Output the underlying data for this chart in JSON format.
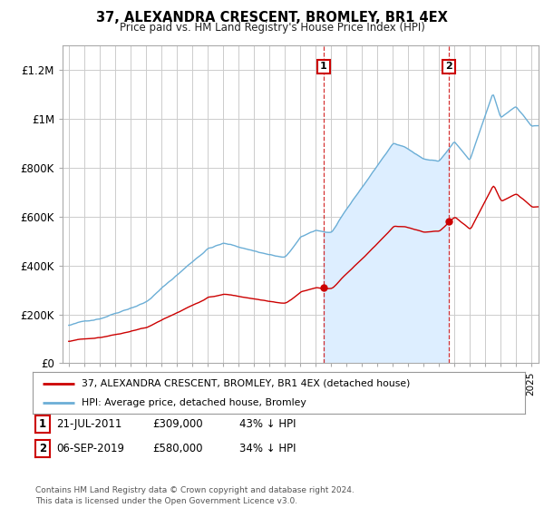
{
  "title": "37, ALEXANDRA CRESCENT, BROMLEY, BR1 4EX",
  "subtitle": "Price paid vs. HM Land Registry's House Price Index (HPI)",
  "ylabel_ticks": [
    "£0",
    "£200K",
    "£400K",
    "£600K",
    "£800K",
    "£1M",
    "£1.2M"
  ],
  "ylim": [
    0,
    1300000
  ],
  "yticks": [
    0,
    200000,
    400000,
    600000,
    800000,
    1000000,
    1200000
  ],
  "sale1_x": 2011.55,
  "sale2_x": 2019.68,
  "sale1_price": 309000,
  "sale2_price": 580000,
  "hpi_color": "#6baed6",
  "sale_color": "#cc0000",
  "fill_color": "#ddeeff",
  "legend_label1": "37, ALEXANDRA CRESCENT, BROMLEY, BR1 4EX (detached house)",
  "legend_label2": "HPI: Average price, detached house, Bromley",
  "footnote": "Contains HM Land Registry data © Crown copyright and database right 2024.\nThis data is licensed under the Open Government Licence v3.0.",
  "background_color": "#ffffff",
  "grid_color": "#cccccc"
}
